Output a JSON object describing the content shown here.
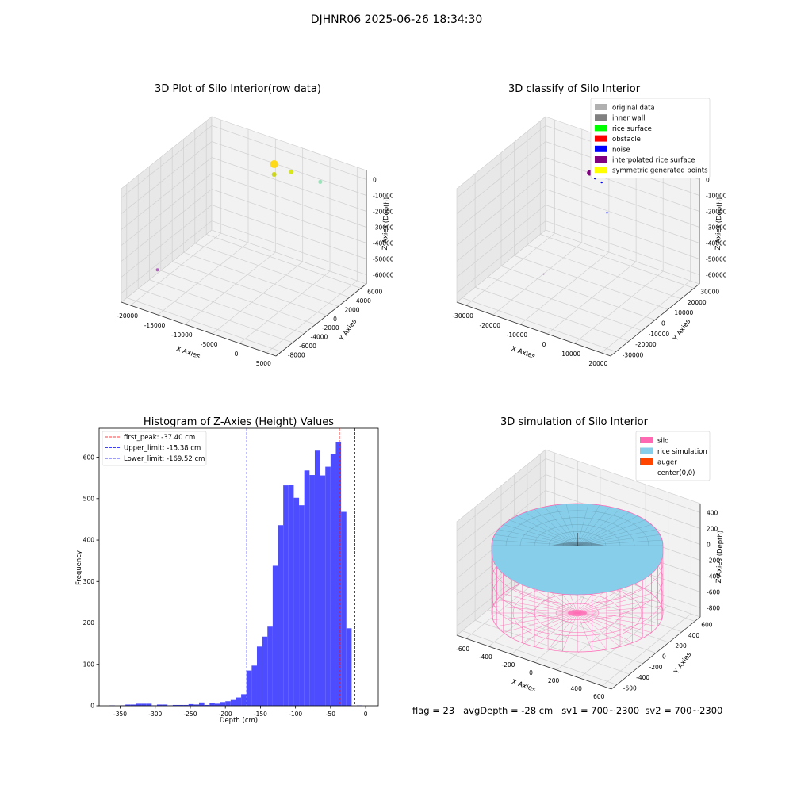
{
  "figure": {
    "suptitle": "DJHNR06 2025-06-26 18:34:30",
    "footer": "flag = 23   avgDepth = -28 cm   sv1 = 700~2300  sv2 = 700~2300"
  },
  "colors": {
    "background": "#ffffff",
    "pane": "#f2f2f2",
    "pane_side": "#e8e8e8",
    "grid": "#d0d0d0",
    "hist_bar": "#4d4dff",
    "peak_line": "#ff0000",
    "limit_line": "#0000ff",
    "silo": "#ff69b4",
    "rice_simulation": "#87ceeb",
    "auger": "#ff4500"
  },
  "chart_data": [
    {
      "type": "scatter",
      "projection": "3d",
      "title": "3D Plot of Silo Interior(row data)",
      "xlabel": "X Axies",
      "ylabel": "Y Axies",
      "zlabel": "Z Axies (Depth)",
      "x_ticks": [
        "-20000",
        "-15000",
        "-10000",
        "-5000",
        "0",
        "5000"
      ],
      "y_ticks": [
        "-8000",
        "-6000",
        "-4000",
        "-2000",
        "0",
        "2000",
        "4000",
        "6000"
      ],
      "z_ticks": [
        "0",
        "-10000",
        "-20000",
        "-30000",
        "-40000",
        "-50000",
        "-60000"
      ],
      "points": [
        {
          "x": -9000,
          "y": 5000,
          "z": -5000,
          "size": 5,
          "color": "#ffd700"
        },
        {
          "x": -6000,
          "y": 5000,
          "z": -6000,
          "size": 3,
          "color": "#d4e600"
        },
        {
          "x": -9000,
          "y": 5000,
          "z": -11000,
          "size": 3,
          "color": "#c8d400"
        },
        {
          "x": -2000,
          "y": 6000,
          "z": -10000,
          "size": 2.5,
          "color": "#90e0b0"
        },
        {
          "x": -22000,
          "y": -2000,
          "z": -62000,
          "size": 2,
          "color": "#b050c0"
        }
      ]
    },
    {
      "type": "scatter",
      "projection": "3d",
      "title": "3D classify of Silo Interior",
      "xlabel": "X Axies",
      "ylabel": "Y Axies",
      "zlabel": "Z Axies (Depth)",
      "x_ticks": [
        "-30000",
        "-20000",
        "-10000",
        "0",
        "10000",
        "20000"
      ],
      "y_ticks": [
        "-30000",
        "-20000",
        "-10000",
        "0",
        "10000",
        "20000",
        "30000"
      ],
      "z_ticks": [
        "0",
        "-10000",
        "-20000",
        "-30000",
        "-40000",
        "-50000",
        "-60000"
      ],
      "legend": {
        "location": "upper right",
        "entries": [
          {
            "label": "original data",
            "color": "#b0b0b0"
          },
          {
            "label": "inner wall",
            "color": "#808080"
          },
          {
            "label": "rice surface",
            "color": "#00ff00"
          },
          {
            "label": "obstacle",
            "color": "#ff0000"
          },
          {
            "label": "noise",
            "color": "#0000ff"
          },
          {
            "label": "interpolated rice surface",
            "color": "#800080"
          },
          {
            "label": "symmetric generated points",
            "color": "#ffff00"
          }
        ]
      },
      "points": [
        {
          "x": -10000,
          "y": 15000,
          "z": -5000,
          "size": 3.5,
          "color": "#800080"
        },
        {
          "x": -8000,
          "y": 15000,
          "z": -7000,
          "size": 1.5,
          "color": "#0000ff"
        },
        {
          "x": -6000,
          "y": 16000,
          "z": -9000,
          "size": 1.2,
          "color": "#0000ff"
        },
        {
          "x": -2000,
          "y": 12000,
          "z": -22000,
          "size": 1.2,
          "color": "#0000ff"
        },
        {
          "x": -20000,
          "y": 0,
          "z": -60000,
          "size": 1,
          "color": "#b070c0"
        }
      ]
    },
    {
      "type": "bar",
      "title": "Histogram of Z-Axies (Height) Values",
      "xlabel": "Depth (cm)",
      "ylabel": "Frequency",
      "xlim": [
        -380,
        18
      ],
      "ylim": [
        0,
        670
      ],
      "x_ticks": [
        -350,
        -300,
        -250,
        -200,
        -150,
        -100,
        -50,
        0
      ],
      "y_ticks": [
        0,
        100,
        200,
        300,
        400,
        500,
        600
      ],
      "bin_start": -365,
      "bin_width": 7.5,
      "values": [
        1,
        0,
        1,
        3,
        3,
        5,
        5,
        5,
        1,
        3,
        3,
        1,
        2,
        2,
        2,
        4,
        3,
        8,
        2,
        7,
        5,
        9,
        11,
        14,
        20,
        28,
        85,
        97,
        143,
        167,
        191,
        338,
        436,
        532,
        534,
        502,
        484,
        568,
        557,
        616,
        556,
        577,
        607,
        636,
        468,
        187,
        0,
        1
      ],
      "lines": [
        {
          "label": "first_peak: -37.40 cm",
          "x": -37.4,
          "color": "#ff0000"
        },
        {
          "label": "Upper_limit: -15.38 cm",
          "x": -15.38,
          "color": "#0000ff"
        },
        {
          "label": "Lower_limit: -169.52 cm",
          "x": -169.52,
          "color": "#0000ff"
        }
      ],
      "legend_location": "upper left"
    },
    {
      "type": "other",
      "projection": "3d",
      "title": "3D simulation of Silo Interior",
      "xlabel": "X Axies",
      "ylabel": "Y Axies",
      "zlabel": "Z Axies (Depth)",
      "x_ticks": [
        "-600",
        "-400",
        "-200",
        "0",
        "200",
        "400",
        "600"
      ],
      "y_ticks": [
        "-600",
        "-400",
        "-200",
        "0",
        "200",
        "400",
        "600"
      ],
      "z_ticks": [
        "400",
        "200",
        "0",
        "-200",
        "-400",
        "-600",
        "-800"
      ],
      "legend": {
        "location": "upper right",
        "entries": [
          {
            "label": "silo",
            "color": "#ff69b4"
          },
          {
            "label": "rice simulation",
            "color": "#87ceeb"
          },
          {
            "label": "auger",
            "color": "#ff4500"
          },
          {
            "label": "center(0,0)",
            "color": "#ffffff"
          }
        ]
      },
      "silo_radius": 600,
      "silo_top": 0,
      "silo_bottom": -850,
      "rice_level": -28
    }
  ]
}
